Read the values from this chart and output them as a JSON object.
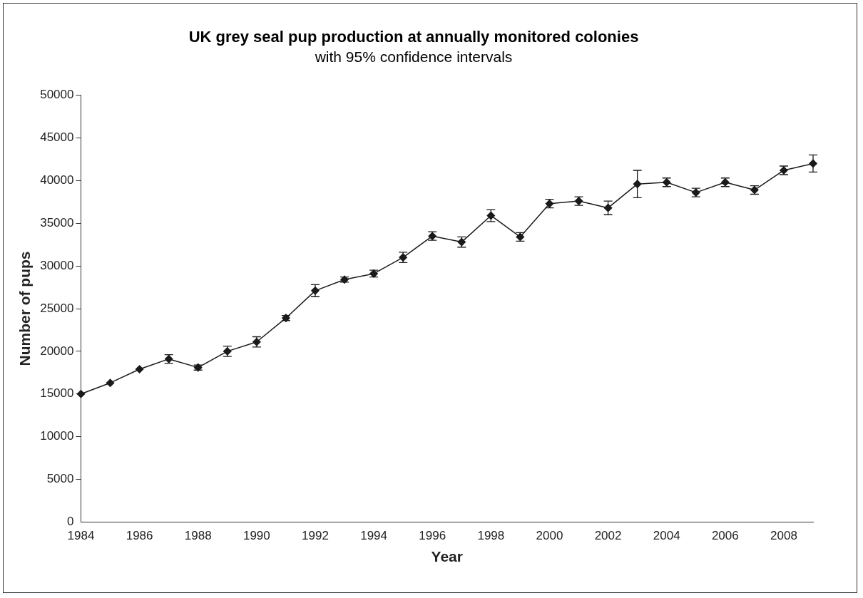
{
  "chart_data": {
    "type": "line",
    "title": "UK grey seal pup production at annually monitored colonies",
    "subtitle": "with 95% confidence intervals",
    "xlabel": "Year",
    "ylabel": "Number of pups",
    "x": [
      1984,
      1985,
      1986,
      1987,
      1988,
      1989,
      1990,
      1991,
      1992,
      1993,
      1994,
      1995,
      1996,
      1997,
      1998,
      1999,
      2000,
      2001,
      2002,
      2003,
      2004,
      2005,
      2006,
      2007,
      2008,
      2009
    ],
    "values": [
      15000,
      16300,
      17900,
      19100,
      18100,
      20000,
      21100,
      23900,
      27100,
      28400,
      29100,
      31000,
      33500,
      32800,
      35900,
      33400,
      37300,
      37600,
      36800,
      39600,
      39800,
      38600,
      39800,
      38900,
      41200,
      42000
    ],
    "errors": [
      null,
      null,
      null,
      500,
      300,
      600,
      600,
      300,
      700,
      300,
      400,
      600,
      500,
      600,
      700,
      500,
      500,
      500,
      800,
      1600,
      500,
      500,
      500,
      500,
      500,
      1000
    ],
    "color": "#1a1a1a",
    "marker": "diamond",
    "line_style": "solid",
    "xlim": [
      1984,
      2009
    ],
    "xticks": [
      1984,
      1986,
      1988,
      1990,
      1992,
      1994,
      1996,
      1998,
      2000,
      2002,
      2004,
      2006,
      2008
    ],
    "ylim": [
      0,
      50000
    ],
    "yticks": [
      0,
      5000,
      10000,
      15000,
      20000,
      25000,
      30000,
      35000,
      40000,
      45000,
      50000
    ],
    "grid": false,
    "legend": false
  }
}
